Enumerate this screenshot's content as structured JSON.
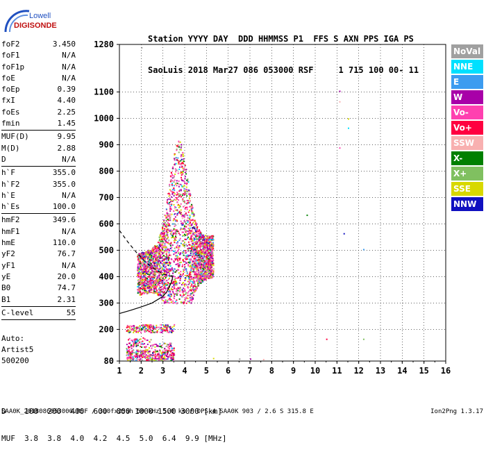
{
  "logo": {
    "line1": "Lowell",
    "line2": "DIGISONDE",
    "icon": "digisonde-arc-logo"
  },
  "header": {
    "line1": "Station YYYY DAY  DDD HHMMSS P1  FFS S AXN PPS IGA PS",
    "line2": "SaoLuis 2018 Mar27 086 053000 RSF     1 715 100 00- 11"
  },
  "params": [
    {
      "group": [
        {
          "label": "foF2",
          "value": "3.450"
        },
        {
          "label": "foF1",
          "value": "N/A"
        },
        {
          "label": "foF1p",
          "value": "N/A"
        },
        {
          "label": "foE",
          "value": "N/A"
        },
        {
          "label": "foEp",
          "value": "0.39"
        },
        {
          "label": "fxI",
          "value": "4.40"
        },
        {
          "label": "foEs",
          "value": "2.25"
        },
        {
          "label": "fmin",
          "value": "1.45"
        }
      ]
    },
    {
      "group": [
        {
          "label": "MUF(D)",
          "value": "9.95"
        },
        {
          "label": "M(D)",
          "value": "2.88"
        },
        {
          "label": "D",
          "value": "N/A"
        }
      ]
    },
    {
      "group": [
        {
          "label": "h`F",
          "value": "355.0"
        },
        {
          "label": "h`F2",
          "value": "355.0"
        },
        {
          "label": "h`E",
          "value": "N/A"
        },
        {
          "label": "h`Es",
          "value": "100.0"
        }
      ]
    },
    {
      "group": [
        {
          "label": "hmF2",
          "value": "349.6"
        },
        {
          "label": "hmF1",
          "value": "N/A"
        },
        {
          "label": "hmE",
          "value": "110.0"
        },
        {
          "label": "yF2",
          "value": "76.7"
        },
        {
          "label": "yF1",
          "value": "N/A"
        },
        {
          "label": "yE",
          "value": "20.0"
        },
        {
          "label": "B0",
          "value": "74.7"
        },
        {
          "label": "B1",
          "value": "2.31"
        }
      ]
    },
    {
      "group": [
        {
          "label": "C-level",
          "value": "55"
        }
      ]
    }
  ],
  "auto": {
    "line1": "Auto:",
    "line2": "Artist5",
    "line3": "500200"
  },
  "legend": [
    {
      "label": "NoVal",
      "color": "#a0a0a0"
    },
    {
      "label": "NNE",
      "color": "#00e0ff"
    },
    {
      "label": "E",
      "color": "#3c9cf0"
    },
    {
      "label": "W",
      "color": "#a800a8"
    },
    {
      "label": "Vo-",
      "color": "#ff40b0"
    },
    {
      "label": "Vo+",
      "color": "#ff0040"
    },
    {
      "label": "SSW",
      "color": "#f8b0b0"
    },
    {
      "label": "X-",
      "color": "#008000"
    },
    {
      "label": "X+",
      "color": "#80c060"
    },
    {
      "label": "SSE",
      "color": "#d8d800"
    },
    {
      "label": "NNW",
      "color": "#1010c0"
    }
  ],
  "chart_data": {
    "type": "scatter",
    "x_ticks": [
      1,
      2,
      3,
      4,
      5,
      6,
      7,
      8,
      9,
      10,
      11,
      12,
      13,
      14,
      15,
      16
    ],
    "y_ticks": [
      80,
      200,
      300,
      400,
      500,
      600,
      700,
      800,
      900,
      1000,
      1100,
      1280
    ],
    "xlim": [
      1,
      16
    ],
    "ylim": [
      80,
      1280
    ],
    "grid": "dotted",
    "trace_regions": [
      {
        "name": "F-trace",
        "xrange": [
          1.7,
          5.3
        ],
        "yrange": [
          300,
          980
        ]
      },
      {
        "name": "Es-trace",
        "xrange": [
          1.3,
          3.5
        ],
        "yrange": [
          85,
          260
        ]
      }
    ],
    "isolated_points": [
      [
        2.0,
        1270
      ],
      [
        11.1,
        1105
      ],
      [
        11.1,
        1065
      ],
      [
        11.5,
        1000
      ],
      [
        11.5,
        965
      ],
      [
        11.1,
        890
      ],
      [
        9.6,
        635
      ],
      [
        11.3,
        565
      ],
      [
        12.2,
        505
      ],
      [
        10.5,
        165
      ],
      [
        12.2,
        165
      ],
      [
        6.5,
        90
      ],
      [
        7.0,
        90
      ],
      [
        7.6,
        88
      ],
      [
        5.3,
        92
      ]
    ],
    "profile_curve": [
      [
        1.0,
        260
      ],
      [
        1.5,
        272
      ],
      [
        2.0,
        285
      ],
      [
        2.5,
        300
      ],
      [
        3.0,
        325
      ],
      [
        3.2,
        345
      ],
      [
        3.4,
        380
      ],
      [
        3.45,
        400
      ]
    ],
    "dashed_curve": [
      [
        1.0,
        575
      ],
      [
        1.4,
        530
      ],
      [
        1.8,
        490
      ],
      [
        2.2,
        455
      ],
      [
        2.6,
        430
      ],
      [
        3.0,
        410
      ],
      [
        3.45,
        400
      ]
    ]
  },
  "footer": {
    "line1": "D    100  200  400  600  800 1000 1500 3000 [km]",
    "line2": "MUF  3.8  3.8  4.0  4.2  4.5  5.0  6.4  9.9 [MHz]"
  },
  "filename": "SAA0K_2018086053000.RSF / 300fx256h 50 kHz 5.0 km / DPS-4 SAA0K 903 / 2.6 S 315.8 E",
  "version": "Ion2Png 1.3.17"
}
